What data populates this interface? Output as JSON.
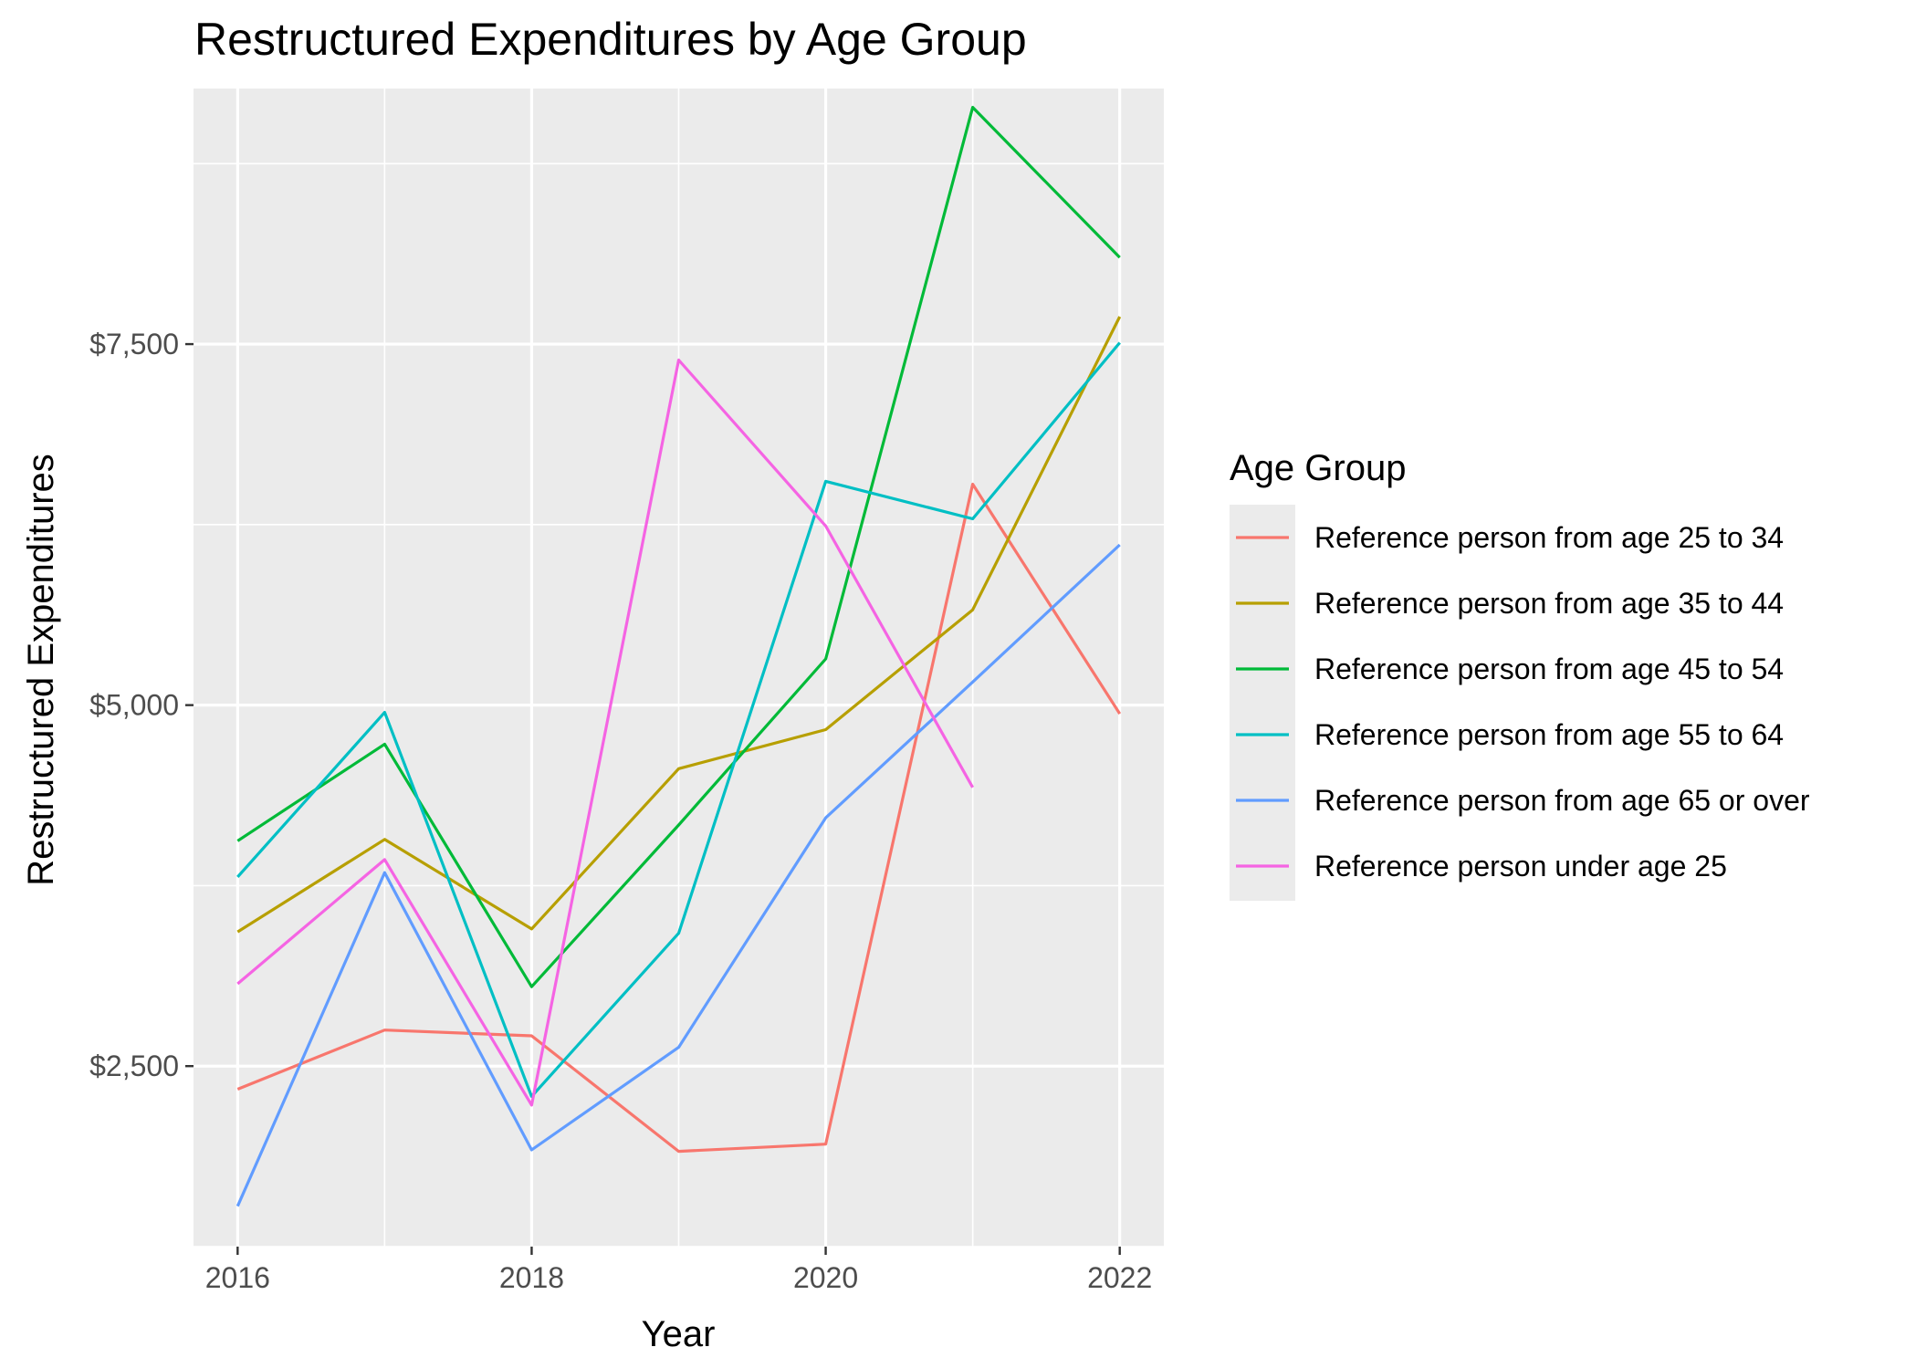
{
  "chart_data": {
    "type": "line",
    "title": "Restructured Expenditures by Age Group",
    "xlabel": "Year",
    "ylabel": "Restructured Expenditures",
    "x": [
      2016,
      2017,
      2018,
      2019,
      2020,
      2021,
      2022
    ],
    "x_ticks": [
      2016,
      2018,
      2020,
      2022
    ],
    "x_tick_labels": [
      "2016",
      "2018",
      "2020",
      "2022"
    ],
    "y_ticks": [
      2500,
      5000,
      7500
    ],
    "y_tick_labels": [
      "$2,500",
      "$5,000",
      "$7,500"
    ],
    "xlim": [
      2015.7,
      2022.3
    ],
    "ylim": [
      1250,
      9270
    ],
    "grid": true,
    "legend": {
      "title": "Age Group",
      "position": "right"
    },
    "series": [
      {
        "name": "Reference person from age 25 to 34",
        "color": "#F8766D",
        "values": [
          2340,
          2750,
          2710,
          1910,
          1960,
          6530,
          4940
        ]
      },
      {
        "name": "Reference person from age 35 to 44",
        "color": "#B79F00",
        "values": [
          3430,
          4070,
          3450,
          4560,
          4830,
          5660,
          7690
        ]
      },
      {
        "name": "Reference person from age 45 to 54",
        "color": "#00BA38",
        "values": [
          4060,
          4730,
          3050,
          4170,
          5320,
          9140,
          8100
        ]
      },
      {
        "name": "Reference person from age 55 to 64",
        "color": "#00BFC4",
        "values": [
          3810,
          4950,
          2290,
          3420,
          6550,
          6290,
          7510
        ]
      },
      {
        "name": "Reference person from age 65 or over",
        "color": "#619CFF",
        "values": [
          1530,
          3840,
          1920,
          2630,
          4220,
          5160,
          6110
        ]
      },
      {
        "name": "Reference person under age 25",
        "color": "#F564E3",
        "values": [
          3070,
          3930,
          2230,
          7390,
          6240,
          4430,
          null
        ]
      }
    ]
  }
}
